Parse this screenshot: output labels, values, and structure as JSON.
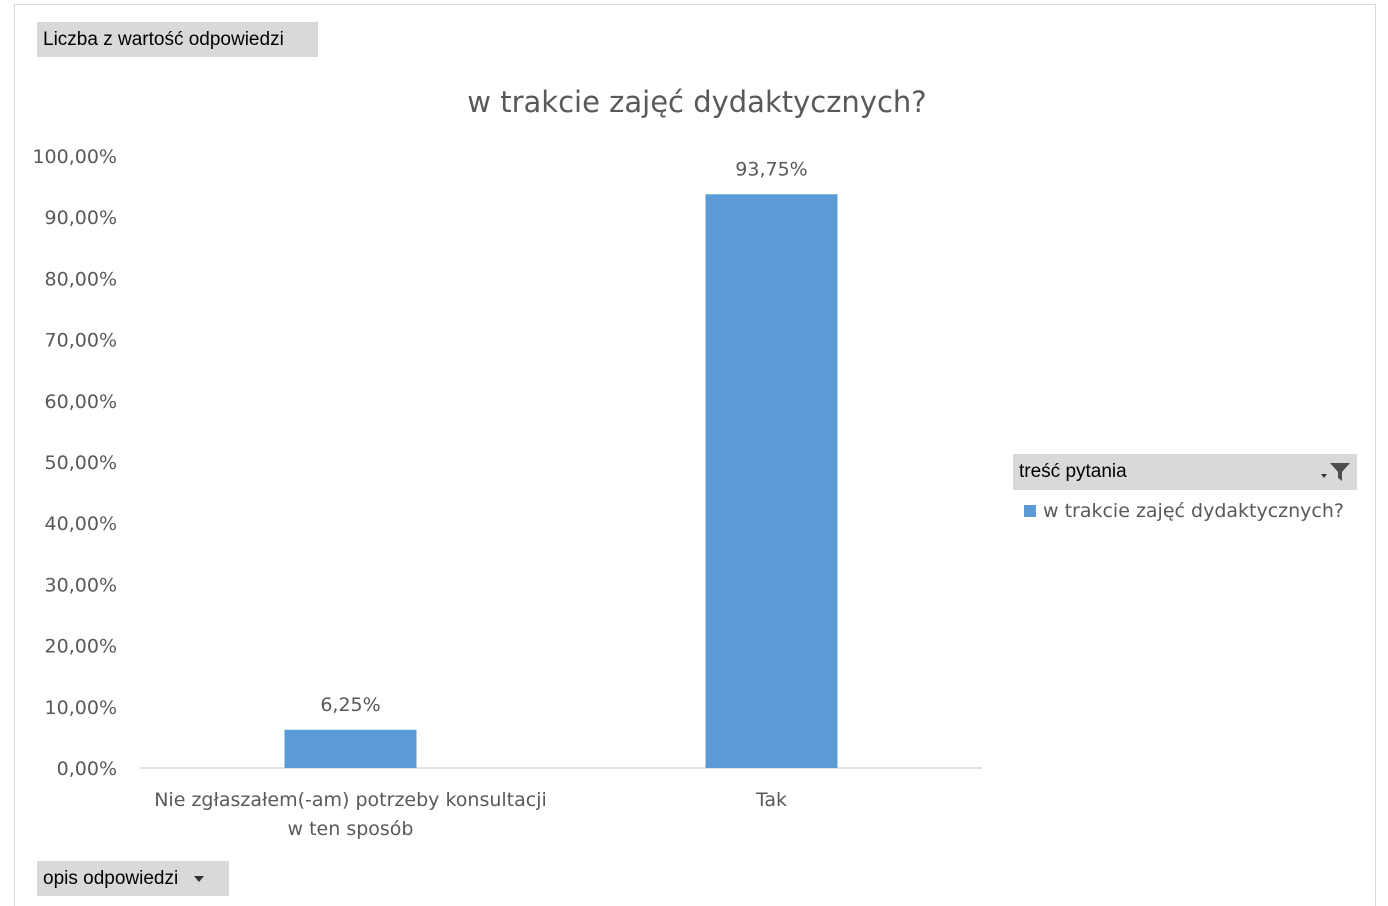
{
  "field_buttons": {
    "values": "Liczba z wartość odpowiedzi",
    "legend": "treść pytania",
    "axis": "opis odpowiedzi"
  },
  "icons": {
    "legend_filter": "filter-icon",
    "axis_dropdown": "chevron-down-icon"
  },
  "colors": {
    "bar": "#5b9bd5",
    "grid": "#d9d9d9",
    "text": "#595959"
  },
  "chart_data": {
    "type": "bar",
    "title": "w trakcie zajęć dydaktycznych?",
    "categories": [
      [
        "Nie zgłaszałem(-am) potrzeby konsultacji",
        "w ten sposób"
      ],
      [
        "Tak"
      ]
    ],
    "series": [
      {
        "name": "w trakcie zajęć dydaktycznych?",
        "values": [
          6.25,
          93.75
        ]
      }
    ],
    "data_labels": [
      "6,25%",
      "93,75%"
    ],
    "ylim": [
      0,
      100
    ],
    "yticks": [
      0,
      10,
      20,
      30,
      40,
      50,
      60,
      70,
      80,
      90,
      100
    ],
    "ytick_labels": [
      "0,00%",
      "10,00%",
      "20,00%",
      "30,00%",
      "40,00%",
      "50,00%",
      "60,00%",
      "70,00%",
      "80,00%",
      "90,00%",
      "100,00%"
    ],
    "grid": false,
    "legend_position": "right"
  }
}
